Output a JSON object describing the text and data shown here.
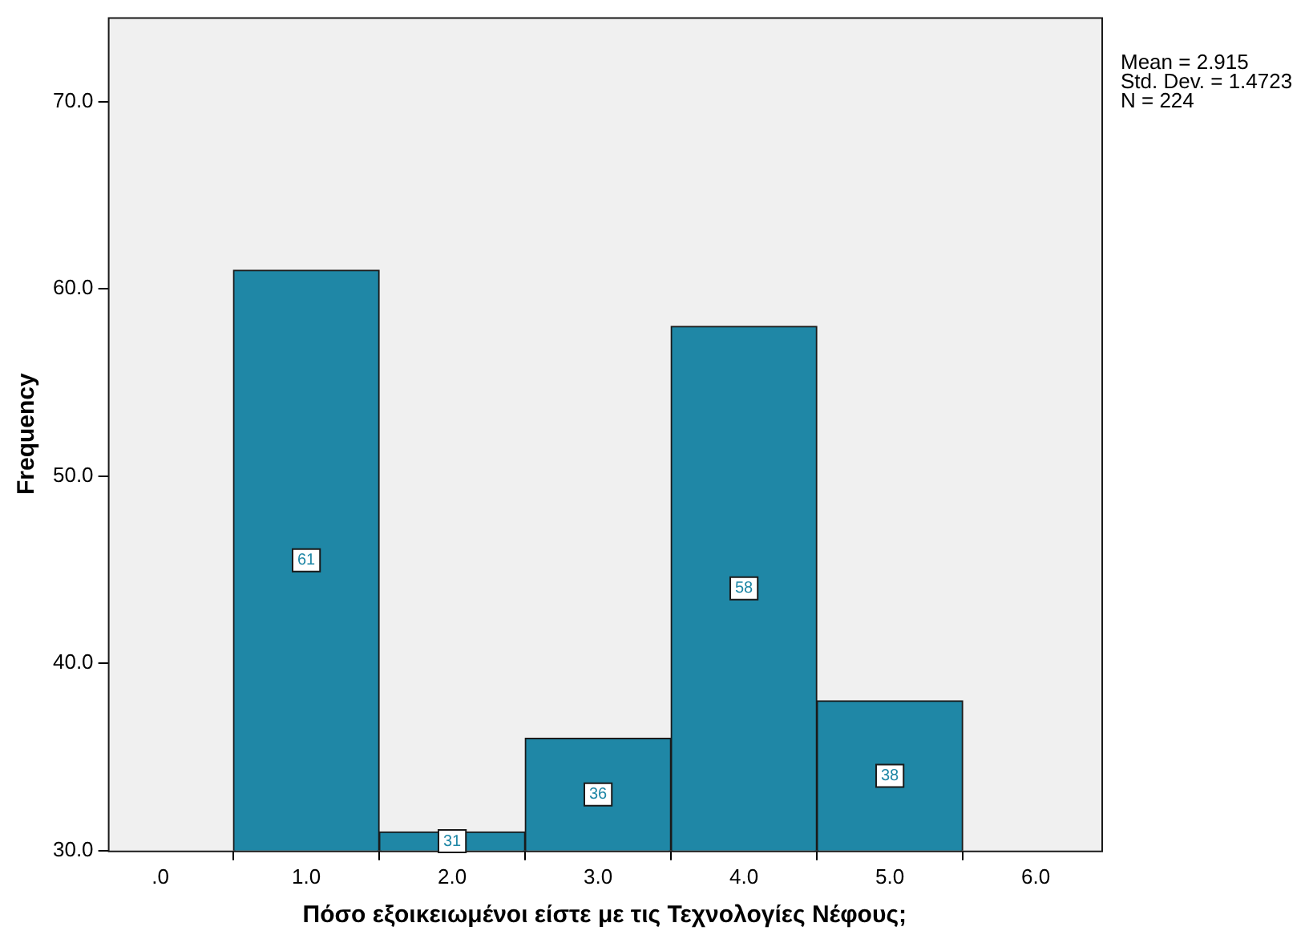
{
  "chart_data": {
    "type": "histogram",
    "xlabel": "Πόσο εξοικειωμένοι είστε με τις Τεχνολογίες Νέφους;",
    "ylabel": "Frequency",
    "bins": [
      0.5,
      1.5,
      2.5,
      3.5,
      4.5,
      5.5
    ],
    "values": [
      61,
      31,
      36,
      58,
      38
    ],
    "color": "#1f87a6",
    "data_labels": true,
    "grid": false,
    "xlim": [
      -0.36,
      6.45
    ],
    "xticks": [
      {
        "value": 0,
        "label": ".0"
      },
      {
        "value": 1,
        "label": "1.0"
      },
      {
        "value": 2,
        "label": "2.0"
      },
      {
        "value": 3,
        "label": "3.0"
      },
      {
        "value": 4,
        "label": "4.0"
      },
      {
        "value": 5,
        "label": "5.0"
      },
      {
        "value": 6,
        "label": "6.0"
      }
    ],
    "ylim": [
      30,
      74.5
    ],
    "yticks": [
      {
        "value": 30,
        "label": "30.0"
      },
      {
        "value": 40,
        "label": "40.0"
      },
      {
        "value": 50,
        "label": "50.0"
      },
      {
        "value": 60,
        "label": "60.0"
      },
      {
        "value": 70,
        "label": "70.0"
      }
    ],
    "annotations": [
      "Mean = 2.915",
      "Std. Dev. = 1.4723",
      "N = 224"
    ]
  }
}
